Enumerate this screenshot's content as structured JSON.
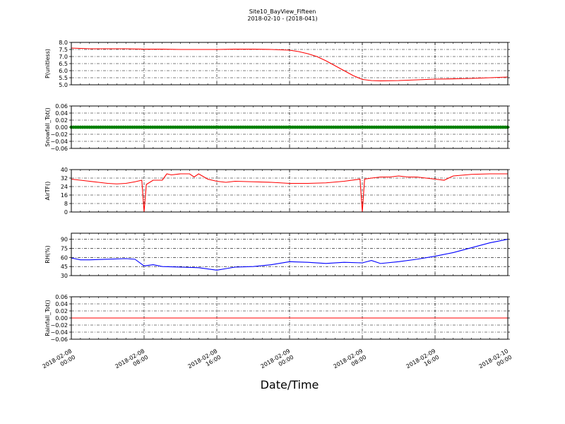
{
  "figure": {
    "title": "Site10_BayView_Fifteen",
    "subtitle": "2018-02-10 - (2018-041)",
    "xlabel": "Date/Time"
  },
  "chart_data": [
    {
      "type": "line",
      "ylabel": "P(unitless)",
      "ylim": [
        5.0,
        8.0
      ],
      "yticks": [
        "5.0",
        "5.5",
        "6.0",
        "6.5",
        "7.0",
        "7.5",
        "8.0"
      ],
      "xlim": [
        "2018-02-08 00:00",
        "2018-02-10 00:00"
      ],
      "grid": true,
      "series": [
        {
          "color": "#ff0000",
          "x": [
            "2018-02-08 00:00",
            "2018-02-08 02:00",
            "2018-02-08 04:00",
            "2018-02-08 06:00",
            "2018-02-08 08:00",
            "2018-02-08 10:00",
            "2018-02-08 12:00",
            "2018-02-08 14:00",
            "2018-02-08 16:00",
            "2018-02-08 18:00",
            "2018-02-08 20:00",
            "2018-02-08 22:00",
            "2018-02-09 00:00",
            "2018-02-09 01:00",
            "2018-02-09 02:00",
            "2018-02-09 03:00",
            "2018-02-09 04:00",
            "2018-02-09 05:00",
            "2018-02-09 06:00",
            "2018-02-09 07:00",
            "2018-02-09 08:00",
            "2018-02-09 09:00",
            "2018-02-09 10:00",
            "2018-02-09 12:00",
            "2018-02-09 14:00",
            "2018-02-09 16:00",
            "2018-02-09 18:00",
            "2018-02-09 20:00",
            "2018-02-09 22:00",
            "2018-02-10 00:00"
          ],
          "values": [
            7.6,
            7.55,
            7.55,
            7.55,
            7.52,
            7.52,
            7.5,
            7.5,
            7.5,
            7.52,
            7.52,
            7.5,
            7.45,
            7.35,
            7.2,
            7.0,
            6.7,
            6.35,
            6.0,
            5.65,
            5.38,
            5.3,
            5.28,
            5.3,
            5.35,
            5.4,
            5.42,
            5.45,
            5.5,
            5.55
          ]
        }
      ]
    },
    {
      "type": "scatter",
      "ylabel": "Snowfall_Tot()",
      "ylim": [
        -0.06,
        0.06
      ],
      "yticks": [
        "−0.06",
        "−0.04",
        "−0.02",
        "0.00",
        "0.02",
        "0.04",
        "0.06"
      ],
      "xlim": [
        "2018-02-08 00:00",
        "2018-02-10 00:00"
      ],
      "grid": true,
      "series": [
        {
          "color": "#008000",
          "x": [
            "2018-02-08 00:00",
            "2018-02-10 00:00"
          ],
          "values": [
            0.0,
            0.0
          ],
          "note_marker_density": "continuous"
        }
      ]
    },
    {
      "type": "line",
      "ylabel": "AirTF()",
      "ylim": [
        0,
        40
      ],
      "yticks": [
        "0",
        "8",
        "16",
        "24",
        "32",
        "40"
      ],
      "xlim": [
        "2018-02-08 00:00",
        "2018-02-10 00:00"
      ],
      "grid": true,
      "series": [
        {
          "color": "#ff0000",
          "x": [
            "2018-02-08 00:00",
            "2018-02-08 01:00",
            "2018-02-08 02:00",
            "2018-02-08 03:00",
            "2018-02-08 04:00",
            "2018-02-08 05:00",
            "2018-02-08 06:00",
            "2018-02-08 07:00",
            "2018-02-08 07:45",
            "2018-02-08 08:00",
            "2018-02-08 08:15",
            "2018-02-08 09:00",
            "2018-02-08 10:00",
            "2018-02-08 10:30",
            "2018-02-08 11:00",
            "2018-02-08 12:00",
            "2018-02-08 13:00",
            "2018-02-08 13:30",
            "2018-02-08 14:00",
            "2018-02-08 15:00",
            "2018-02-08 16:00",
            "2018-02-08 17:00",
            "2018-02-08 18:00",
            "2018-02-08 20:00",
            "2018-02-08 22:00",
            "2018-02-09 00:00",
            "2018-02-09 02:00",
            "2018-02-09 04:00",
            "2018-02-09 06:00",
            "2018-02-09 07:45",
            "2018-02-09 08:00",
            "2018-02-09 08:15",
            "2018-02-09 09:00",
            "2018-02-09 10:00",
            "2018-02-09 11:00",
            "2018-02-09 12:00",
            "2018-02-09 13:00",
            "2018-02-09 14:00",
            "2018-02-09 15:00",
            "2018-02-09 16:00",
            "2018-02-09 17:00",
            "2018-02-09 18:00",
            "2018-02-09 20:00",
            "2018-02-09 22:00",
            "2018-02-10 00:00"
          ],
          "values": [
            31,
            30,
            29,
            28,
            27,
            26.5,
            27,
            28.5,
            30,
            0,
            26,
            30,
            30,
            36,
            35,
            36,
            36,
            33,
            36,
            31,
            29,
            28,
            29,
            28.5,
            28,
            27,
            27,
            27.5,
            29,
            31,
            0,
            31,
            32,
            33,
            33,
            34,
            33,
            33,
            32,
            31,
            30,
            34,
            35.5,
            36,
            36
          ]
        }
      ]
    },
    {
      "type": "line",
      "ylabel": "RH(%)",
      "ylim": [
        30,
        100
      ],
      "yticks": [
        "30",
        "45",
        "60",
        "75",
        "90"
      ],
      "xlim": [
        "2018-02-08 00:00",
        "2018-02-10 00:00"
      ],
      "grid": true,
      "series": [
        {
          "color": "#0000ff",
          "x": [
            "2018-02-08 00:00",
            "2018-02-08 01:00",
            "2018-02-08 02:00",
            "2018-02-08 04:00",
            "2018-02-08 06:00",
            "2018-02-08 07:00",
            "2018-02-08 08:00",
            "2018-02-08 09:00",
            "2018-02-08 10:00",
            "2018-02-08 12:00",
            "2018-02-08 14:00",
            "2018-02-08 16:00",
            "2018-02-08 18:00",
            "2018-02-08 20:00",
            "2018-02-08 22:00",
            "2018-02-09 00:00",
            "2018-02-09 02:00",
            "2018-02-09 04:00",
            "2018-02-09 06:00",
            "2018-02-09 08:00",
            "2018-02-09 09:00",
            "2018-02-09 10:00",
            "2018-02-09 12:00",
            "2018-02-09 14:00",
            "2018-02-09 16:00",
            "2018-02-09 18:00",
            "2018-02-09 20:00",
            "2018-02-09 22:00",
            "2018-02-10 00:00"
          ],
          "values": [
            59,
            56,
            56,
            57,
            58,
            57,
            46,
            48,
            45,
            44,
            43,
            39,
            44,
            45,
            48,
            53,
            52,
            50,
            52,
            51,
            55,
            50,
            53,
            57,
            62,
            68,
            76,
            84,
            90
          ]
        }
      ]
    },
    {
      "type": "line",
      "ylabel": "Rainfall_Tot()",
      "ylim": [
        -0.06,
        0.06
      ],
      "yticks": [
        "−0.06",
        "−0.04",
        "−0.02",
        "0.00",
        "0.02",
        "0.04",
        "0.06"
      ],
      "xlim": [
        "2018-02-08 00:00",
        "2018-02-10 00:00"
      ],
      "grid": true,
      "series": [
        {
          "color": "#ff0000",
          "x": [
            "2018-02-08 00:00",
            "2018-02-10 00:00"
          ],
          "values": [
            0.0,
            0.0
          ]
        }
      ]
    }
  ],
  "xaxis": {
    "ticks": [
      {
        "line1": "2018-02-08",
        "line2": "00:00"
      },
      {
        "line1": "2018-02-08",
        "line2": "08:00"
      },
      {
        "line1": "2018-02-08",
        "line2": "16:00"
      },
      {
        "line1": "2018-02-09",
        "line2": "00:00"
      },
      {
        "line1": "2018-02-09",
        "line2": "08:00"
      },
      {
        "line1": "2018-02-09",
        "line2": "16:00"
      },
      {
        "line1": "2018-02-10",
        "line2": "00:00"
      }
    ]
  }
}
